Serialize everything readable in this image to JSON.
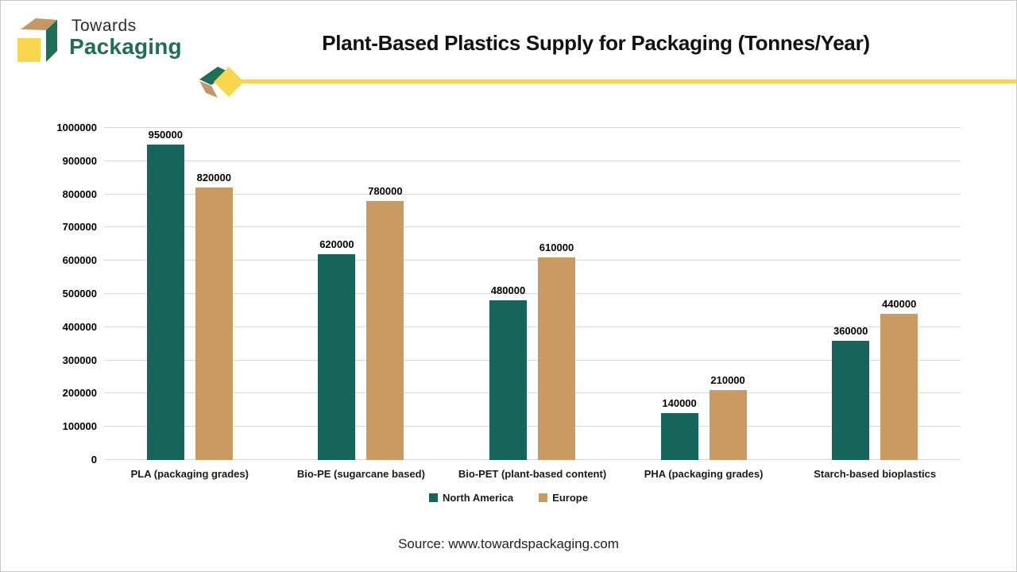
{
  "page": {
    "logo": {
      "line1": "Towards",
      "line2": "Packaging"
    },
    "title": "Plant-Based Plastics Supply for Packaging (Tonnes/Year)",
    "source": "Source: www.towardspackaging.com"
  },
  "colors": {
    "north_america": "#17655a",
    "europe": "#c99a62",
    "logo_green": "#1f6f58",
    "logo_tan": "#c49766",
    "logo_yellow": "#f8d74f",
    "accent_yellow": "#f3d35e",
    "gridline": "#d8d8d8"
  },
  "chart_data": {
    "type": "bar",
    "title": "Plant-Based Plastics Supply for Packaging (Tonnes/Year)",
    "categories": [
      "PLA (packaging grades)",
      "Bio-PE (sugarcane based)",
      "Bio-PET (plant-based content)",
      "PHA (packaging grades)",
      "Starch-based bioplastics"
    ],
    "series": [
      {
        "name": "North America",
        "color": "#17655a",
        "values": [
          950000,
          620000,
          480000,
          140000,
          360000
        ]
      },
      {
        "name": "Europe",
        "color": "#c99a62",
        "values": [
          820000,
          780000,
          610000,
          210000,
          440000
        ]
      }
    ],
    "xlabel": "",
    "ylabel": "",
    "ylim": [
      0,
      1000000
    ],
    "yticks": [
      0,
      100000,
      200000,
      300000,
      400000,
      500000,
      600000,
      700000,
      800000,
      900000,
      1000000
    ],
    "grid": true,
    "legend_position": "bottom"
  }
}
